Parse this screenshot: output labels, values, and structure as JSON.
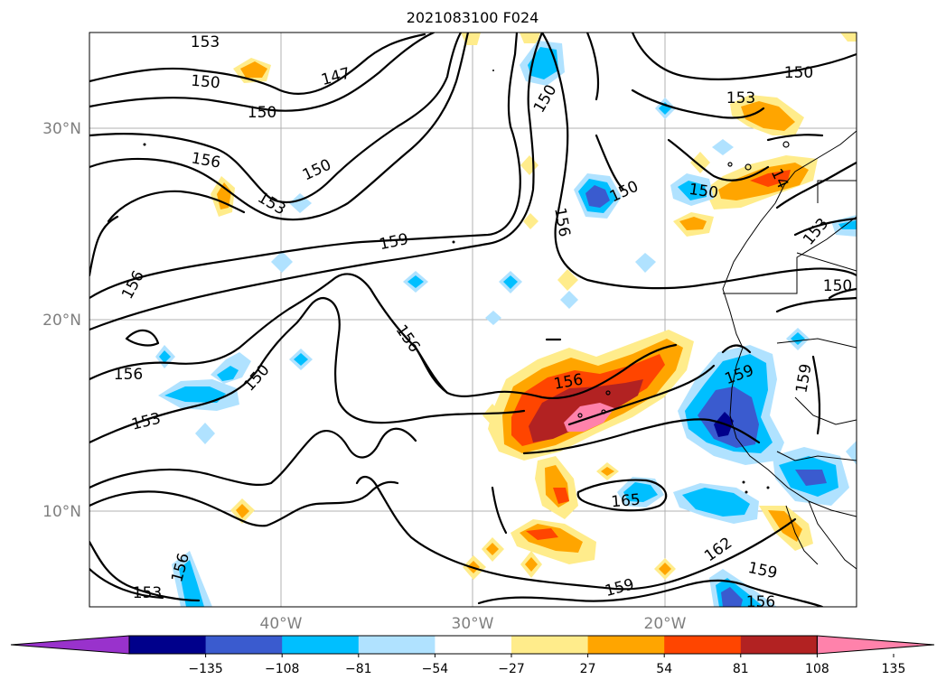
{
  "title": "2021083100 F024",
  "lat_labels": [
    "30°N",
    "20°N",
    "10°N"
  ],
  "lon_labels": [
    "40°W",
    "30°W",
    "20°W"
  ],
  "colorbar": {
    "tick_labels": [
      "−135",
      "−108",
      "−81",
      "−54",
      "−27",
      "27",
      "54",
      "81",
      "108",
      "135"
    ],
    "colors": [
      "#9932cc",
      "#00008b",
      "#3a5bcf",
      "#00bfff",
      "#b0e2ff",
      "#ffffff",
      "#ffec8b",
      "#ffa500",
      "#ff4500",
      "#b22222",
      "#ff82ab"
    ]
  },
  "contour_labels": [
    "153",
    "150",
    "147",
    "150",
    "156",
    "150",
    "153",
    "159",
    "156",
    "156",
    "150",
    "153",
    "156",
    "150",
    "156",
    "150",
    "153",
    "150",
    "150",
    "14",
    "153",
    "150",
    "156",
    "159",
    "159",
    "165",
    "162",
    "159",
    "159",
    "156",
    "153",
    "156"
  ],
  "map": {
    "projection": "lat-lon",
    "extent": {
      "lon": [
        -50,
        -10
      ],
      "lat": [
        5,
        35
      ]
    },
    "field": "filled anomaly with black height contours",
    "grid": true
  }
}
